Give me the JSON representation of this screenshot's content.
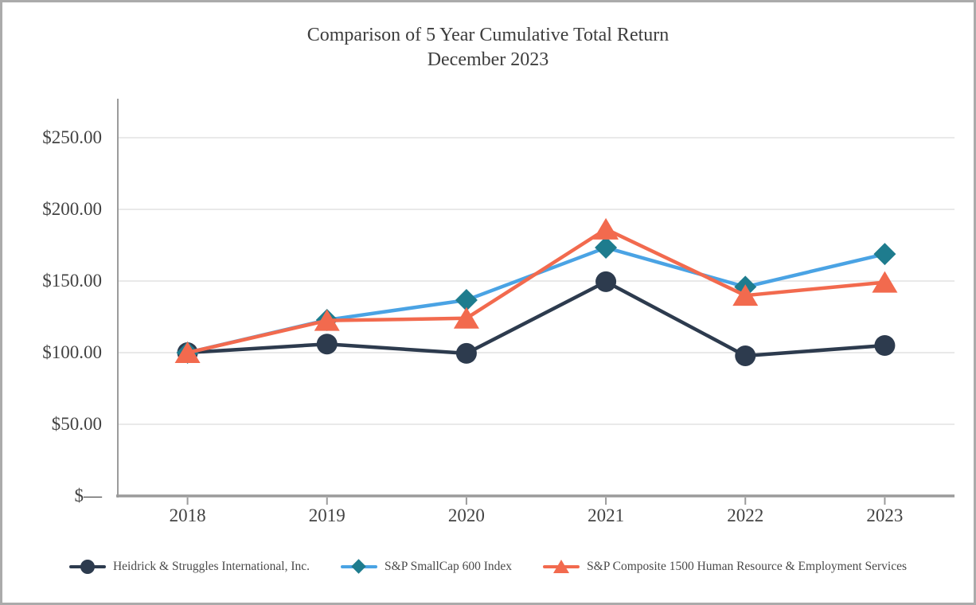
{
  "chart_data": {
    "type": "line",
    "title": "Comparison of 5 Year Cumulative Total Return",
    "subtitle": "December 2023",
    "categories": [
      "2018",
      "2019",
      "2020",
      "2021",
      "2022",
      "2023"
    ],
    "series": [
      {
        "name": "Heidrick & Struggles International, Inc.",
        "marker": "circle",
        "color": "#2d3b4e",
        "line_color": "#2d3b4e",
        "values": [
          100.0,
          106.0,
          99.5,
          149.5,
          97.8,
          105.0
        ]
      },
      {
        "name": "S&P SmallCap 600 Index",
        "marker": "diamond",
        "color": "#1e7c8e",
        "line_color": "#4aa3e4",
        "values": [
          100.0,
          122.8,
          136.7,
          173.3,
          145.9,
          168.8
        ]
      },
      {
        "name": "S&P Composite 1500 Human Resource & Employment Services",
        "marker": "triangle",
        "color": "#f26a4e",
        "line_color": "#f26a4e",
        "values": [
          100.0,
          122.4,
          124.0,
          186.2,
          139.9,
          149.1
        ]
      }
    ],
    "y_ticks": [
      {
        "value": 0,
        "label": "$—"
      },
      {
        "value": 50,
        "label": "$50.00"
      },
      {
        "value": 100,
        "label": "$100.00"
      },
      {
        "value": 150,
        "label": "$150.00"
      },
      {
        "value": 200,
        "label": "$200.00"
      },
      {
        "value": 250,
        "label": "$250.00"
      }
    ],
    "ylim": [
      0,
      277
    ],
    "grid": true,
    "legend_position": "bottom",
    "colors": {
      "gridline": "#e2e2e2",
      "axis": "#9b9b9b",
      "text": "#424242",
      "frame_border": "#ababab"
    }
  }
}
